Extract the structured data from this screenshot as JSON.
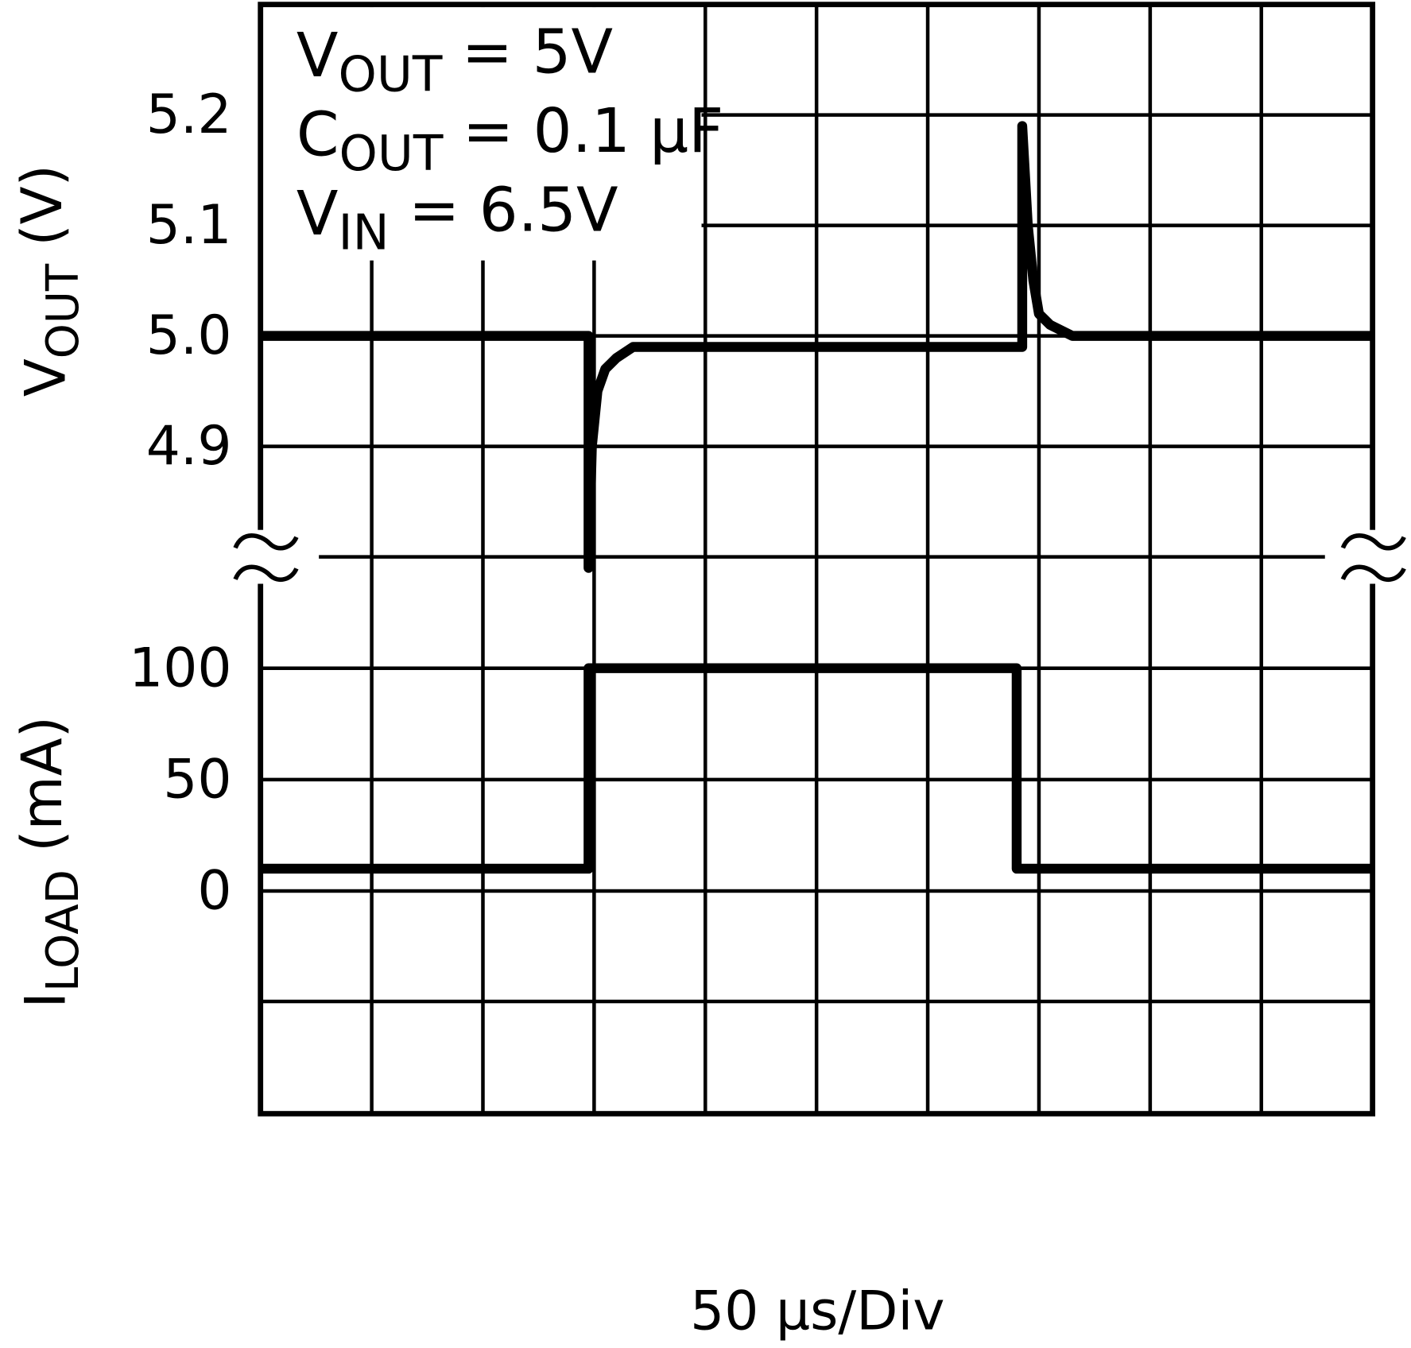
{
  "chart_data": [
    {
      "type": "line",
      "y_label": {
        "main": "V",
        "sub": "OUT",
        "rest": " (V)"
      },
      "annotations": [
        {
          "main": "V",
          "sub": "OUT",
          "rest": " = 5V"
        },
        {
          "main": "C",
          "sub": "OUT",
          "rest": " = 0.1 µF"
        },
        {
          "main": "V",
          "sub": "IN",
          "rest": " = 6.5V"
        }
      ],
      "color": "#000000",
      "xlim": [
        0,
        10
      ],
      "x": [
        0,
        2.95,
        2.95,
        2.98,
        3.03,
        3.1,
        3.2,
        3.35,
        3.5,
        6.85,
        6.85,
        6.9,
        6.95,
        7.0,
        7.1,
        7.3,
        10
      ],
      "values": [
        5.0,
        5.0,
        4.79,
        4.9,
        4.95,
        4.97,
        4.98,
        4.99,
        4.99,
        4.99,
        5.19,
        5.1,
        5.05,
        5.02,
        5.01,
        5.0,
        5.0
      ],
      "ylim": [
        4.8,
        5.3
      ],
      "yticks": [
        4.9,
        {
          "value": 5,
          "label": "5.0"
        },
        5.1,
        5.2
      ],
      "grid": true
    },
    {
      "type": "line",
      "y_label": {
        "main": "I",
        "sub": "LOAD",
        "rest": " (mA)"
      },
      "x_label": "50 µs/Div",
      "color": "#000000",
      "xlim": [
        0,
        10
      ],
      "x": [
        0,
        2.95,
        2.95,
        6.8,
        6.8,
        10
      ],
      "values": [
        10,
        10,
        100,
        100,
        10,
        10
      ],
      "ylim": [
        -100,
        150
      ],
      "yticks": [
        0,
        50,
        100
      ],
      "grid": true
    }
  ]
}
